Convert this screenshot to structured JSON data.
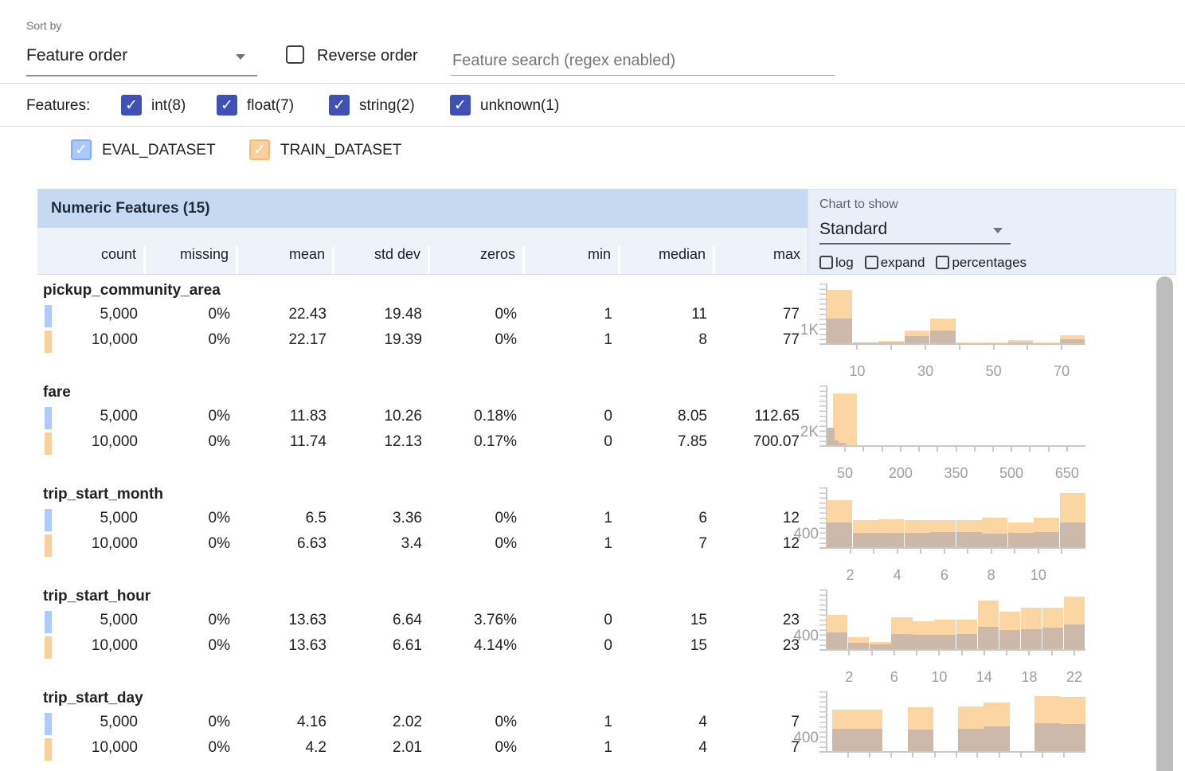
{
  "sort": {
    "label": "Sort by",
    "value": "Feature order"
  },
  "reverse": {
    "label": "Reverse order",
    "checked": false
  },
  "search": {
    "placeholder": "Feature search (regex enabled)"
  },
  "features_filter": {
    "label": "Features:",
    "items": [
      {
        "label": "int(8)",
        "checked": true
      },
      {
        "label": "float(7)",
        "checked": true
      },
      {
        "label": "string(2)",
        "checked": true
      },
      {
        "label": "unknown(1)",
        "checked": true
      }
    ]
  },
  "datasets": [
    {
      "label": "EVAL_DATASET",
      "checked": true,
      "swatch_color": "#aecbfa",
      "checkbox_bg": "#a9c8fb",
      "checkbox_border": "#85aef7"
    },
    {
      "label": "TRAIN_DATASET",
      "checked": true,
      "swatch_color": "#f9cf9b",
      "checkbox_bg": "#fbcf9d",
      "checkbox_border": "#f6ba74"
    }
  ],
  "table": {
    "title": "Numeric Features (15)",
    "columns": [
      "count",
      "missing",
      "mean",
      "std dev",
      "zeros",
      "min",
      "median",
      "max"
    ]
  },
  "chart_controls": {
    "label": "Chart to show",
    "selected": "Standard",
    "toggles": [
      {
        "label": "log"
      },
      {
        "label": "expand"
      },
      {
        "label": "percentages"
      }
    ]
  },
  "colors": {
    "train_bar": "#fbd5a2",
    "overlap_bar": "#cdb9a9",
    "axis": "#c9c9c9",
    "header_bar": "#c5d9f1",
    "header_row": "#eef2f9",
    "panel": "#e8eff9",
    "accent_indigo": "#3f51b5"
  },
  "features": [
    {
      "name": "pickup_community_area",
      "rows": [
        {
          "dataset": "EVAL_DATASET",
          "values": [
            "5,000",
            "0%",
            "22.43",
            "19.48",
            "0%",
            "1",
            "11",
            "77"
          ]
        },
        {
          "dataset": "TRAIN_DATASET",
          "values": [
            "10,000",
            "0%",
            "22.17",
            "19.39",
            "0%",
            "1",
            "8",
            "77"
          ]
        }
      ],
      "chart": {
        "type": "histogram",
        "ylabel": "1K",
        "bars": [
          {
            "x": 0.0,
            "w": 0.098,
            "t": 0.89,
            "e": 0.42
          },
          {
            "x": 0.1,
            "w": 0.098,
            "t": 0.02,
            "e": 0.008
          },
          {
            "x": 0.2,
            "w": 0.098,
            "t": 0.04,
            "e": 0.015
          },
          {
            "x": 0.3,
            "w": 0.098,
            "t": 0.22,
            "e": 0.12
          },
          {
            "x": 0.4,
            "w": 0.098,
            "t": 0.42,
            "e": 0.21
          },
          {
            "x": 0.5,
            "w": 0.098,
            "t": 0.01,
            "e": 0.004
          },
          {
            "x": 0.6,
            "w": 0.098,
            "t": 0.01,
            "e": 0.004
          },
          {
            "x": 0.7,
            "w": 0.098,
            "t": 0.05,
            "e": 0.02
          },
          {
            "x": 0.8,
            "w": 0.098,
            "t": 0.01,
            "e": 0.004
          },
          {
            "x": 0.9,
            "w": 0.098,
            "t": 0.13,
            "e": 0.065
          }
        ],
        "xticks": [
          {
            "f": 0.118,
            "label": "10"
          },
          {
            "f": 0.25
          },
          {
            "f": 0.382,
            "label": "30"
          },
          {
            "f": 0.513
          },
          {
            "f": 0.645,
            "label": "50"
          },
          {
            "f": 0.776
          },
          {
            "f": 0.908,
            "label": "70"
          }
        ]
      }
    },
    {
      "name": "fare",
      "rows": [
        {
          "dataset": "EVAL_DATASET",
          "values": [
            "5,000",
            "0%",
            "11.83",
            "10.26",
            "0.18%",
            "0",
            "8.05",
            "112.65"
          ]
        },
        {
          "dataset": "TRAIN_DATASET",
          "values": [
            "10,000",
            "0%",
            "11.74",
            "12.13",
            "0.17%",
            "0",
            "7.85",
            "700.07"
          ]
        }
      ],
      "chart": {
        "type": "histogram",
        "ylabel": "2K",
        "bars": [
          {
            "x": 0.025,
            "w": 0.092,
            "t": 0.87,
            "e": 0
          },
          {
            "x": 0.004,
            "w": 0.026,
            "t": 0,
            "e": 0.29
          },
          {
            "x": 0.03,
            "w": 0.016,
            "t": 0,
            "e": 0.08
          },
          {
            "x": 0.046,
            "w": 0.028,
            "t": 0,
            "e": 0.035
          }
        ],
        "xticks": [
          {
            "f": 0.071,
            "label": "50"
          },
          {
            "f": 0.143
          },
          {
            "f": 0.214
          },
          {
            "f": 0.286,
            "label": "200"
          },
          {
            "f": 0.357
          },
          {
            "f": 0.429
          },
          {
            "f": 0.5,
            "label": "350"
          },
          {
            "f": 0.571
          },
          {
            "f": 0.643
          },
          {
            "f": 0.714,
            "label": "500"
          },
          {
            "f": 0.786
          },
          {
            "f": 0.857
          },
          {
            "f": 0.929,
            "label": "650"
          }
        ]
      }
    },
    {
      "name": "trip_start_month",
      "rows": [
        {
          "dataset": "EVAL_DATASET",
          "values": [
            "5,000",
            "0%",
            "6.5",
            "3.36",
            "0%",
            "1",
            "6",
            "12"
          ]
        },
        {
          "dataset": "TRAIN_DATASET",
          "values": [
            "10,000",
            "0%",
            "6.63",
            "3.4",
            "0%",
            "1",
            "7",
            "12"
          ]
        }
      ],
      "chart": {
        "type": "histogram",
        "ylabel": "400",
        "bars": [
          {
            "x": 0.0,
            "w": 0.099,
            "t": 0.79,
            "e": 0.41
          },
          {
            "x": 0.1,
            "w": 0.099,
            "t": 0.46,
            "e": 0.24
          },
          {
            "x": 0.2,
            "w": 0.099,
            "t": 0.47,
            "e": 0.24
          },
          {
            "x": 0.3,
            "w": 0.099,
            "t": 0.46,
            "e": 0.24
          },
          {
            "x": 0.4,
            "w": 0.099,
            "t": 0.45,
            "e": 0.25
          },
          {
            "x": 0.5,
            "w": 0.099,
            "t": 0.45,
            "e": 0.25
          },
          {
            "x": 0.6,
            "w": 0.099,
            "t": 0.49,
            "e": 0.23
          },
          {
            "x": 0.7,
            "w": 0.099,
            "t": 0.42,
            "e": 0.24
          },
          {
            "x": 0.8,
            "w": 0.099,
            "t": 0.5,
            "e": 0.25
          },
          {
            "x": 0.9,
            "w": 0.099,
            "t": 0.91,
            "e": 0.42
          }
        ],
        "xticks": [
          {
            "f": 0.091,
            "label": "2"
          },
          {
            "f": 0.182
          },
          {
            "f": 0.273,
            "label": "4"
          },
          {
            "f": 0.364
          },
          {
            "f": 0.455,
            "label": "6"
          },
          {
            "f": 0.545
          },
          {
            "f": 0.636,
            "label": "8"
          },
          {
            "f": 0.727
          },
          {
            "f": 0.818,
            "label": "10"
          },
          {
            "f": 0.909
          }
        ]
      }
    },
    {
      "name": "trip_start_hour",
      "rows": [
        {
          "dataset": "EVAL_DATASET",
          "values": [
            "5,000",
            "0%",
            "13.63",
            "6.64",
            "3.76%",
            "0",
            "15",
            "23"
          ]
        },
        {
          "dataset": "TRAIN_DATASET",
          "values": [
            "10,000",
            "0%",
            "13.63",
            "6.61",
            "4.14%",
            "0",
            "15",
            "23"
          ]
        }
      ],
      "chart": {
        "type": "histogram",
        "ylabel": "400",
        "bars": [
          {
            "x": 0.0,
            "w": 0.0813,
            "t": 0.57,
            "e": 0.28
          },
          {
            "x": 0.0833,
            "w": 0.0813,
            "t": 0.2,
            "e": 0.11
          },
          {
            "x": 0.1667,
            "w": 0.0813,
            "t": 0.12,
            "e": 0.08
          },
          {
            "x": 0.25,
            "w": 0.0813,
            "t": 0.53,
            "e": 0.26
          },
          {
            "x": 0.3333,
            "w": 0.0813,
            "t": 0.47,
            "e": 0.24
          },
          {
            "x": 0.4167,
            "w": 0.0813,
            "t": 0.49,
            "e": 0.24
          },
          {
            "x": 0.5,
            "w": 0.0813,
            "t": 0.5,
            "e": 0.25
          },
          {
            "x": 0.5833,
            "w": 0.0813,
            "t": 0.82,
            "e": 0.37
          },
          {
            "x": 0.6667,
            "w": 0.0813,
            "t": 0.63,
            "e": 0.32
          },
          {
            "x": 0.75,
            "w": 0.0813,
            "t": 0.7,
            "e": 0.34
          },
          {
            "x": 0.8333,
            "w": 0.0813,
            "t": 0.7,
            "e": 0.36
          },
          {
            "x": 0.9167,
            "w": 0.0813,
            "t": 0.88,
            "e": 0.41
          }
        ],
        "xticks": [
          {
            "f": 0.087,
            "label": "2"
          },
          {
            "f": 0.174
          },
          {
            "f": 0.261,
            "label": "6"
          },
          {
            "f": 0.348
          },
          {
            "f": 0.435,
            "label": "10"
          },
          {
            "f": 0.522
          },
          {
            "f": 0.609,
            "label": "14"
          },
          {
            "f": 0.696
          },
          {
            "f": 0.783,
            "label": "18"
          },
          {
            "f": 0.87
          },
          {
            "f": 0.957,
            "label": "22"
          }
        ]
      }
    },
    {
      "name": "trip_start_day",
      "rows": [
        {
          "dataset": "EVAL_DATASET",
          "values": [
            "5,000",
            "0%",
            "4.16",
            "2.02",
            "0%",
            "1",
            "4",
            "7"
          ]
        },
        {
          "dataset": "TRAIN_DATASET",
          "values": [
            "10,000",
            "0%",
            "4.2",
            "2.01",
            "0%",
            "1",
            "4",
            "7"
          ]
        }
      ],
      "chart": {
        "type": "histogram",
        "ylabel": "400",
        "bars": [
          {
            "x": 0.022,
            "w": 0.095,
            "t": 0.7,
            "e": 0.37
          },
          {
            "x": 0.117,
            "w": 0.098,
            "t": 0.7,
            "e": 0.37
          },
          {
            "x": 0.314,
            "w": 0.098,
            "t": 0.74,
            "e": 0.36
          },
          {
            "x": 0.508,
            "w": 0.098,
            "t": 0.75,
            "e": 0.37
          },
          {
            "x": 0.606,
            "w": 0.102,
            "t": 0.82,
            "e": 0.42
          },
          {
            "x": 0.803,
            "w": 0.098,
            "t": 0.92,
            "e": 0.47
          },
          {
            "x": 0.901,
            "w": 0.099,
            "t": 0.91,
            "e": 0.45
          }
        ],
        "xticks": [
          {
            "f": 0.083
          },
          {
            "f": 0.167
          },
          {
            "f": 0.25
          },
          {
            "f": 0.333
          },
          {
            "f": 0.417
          },
          {
            "f": 0.5
          },
          {
            "f": 0.583
          },
          {
            "f": 0.667
          },
          {
            "f": 0.75
          },
          {
            "f": 0.833
          },
          {
            "f": 0.917
          }
        ]
      }
    }
  ]
}
